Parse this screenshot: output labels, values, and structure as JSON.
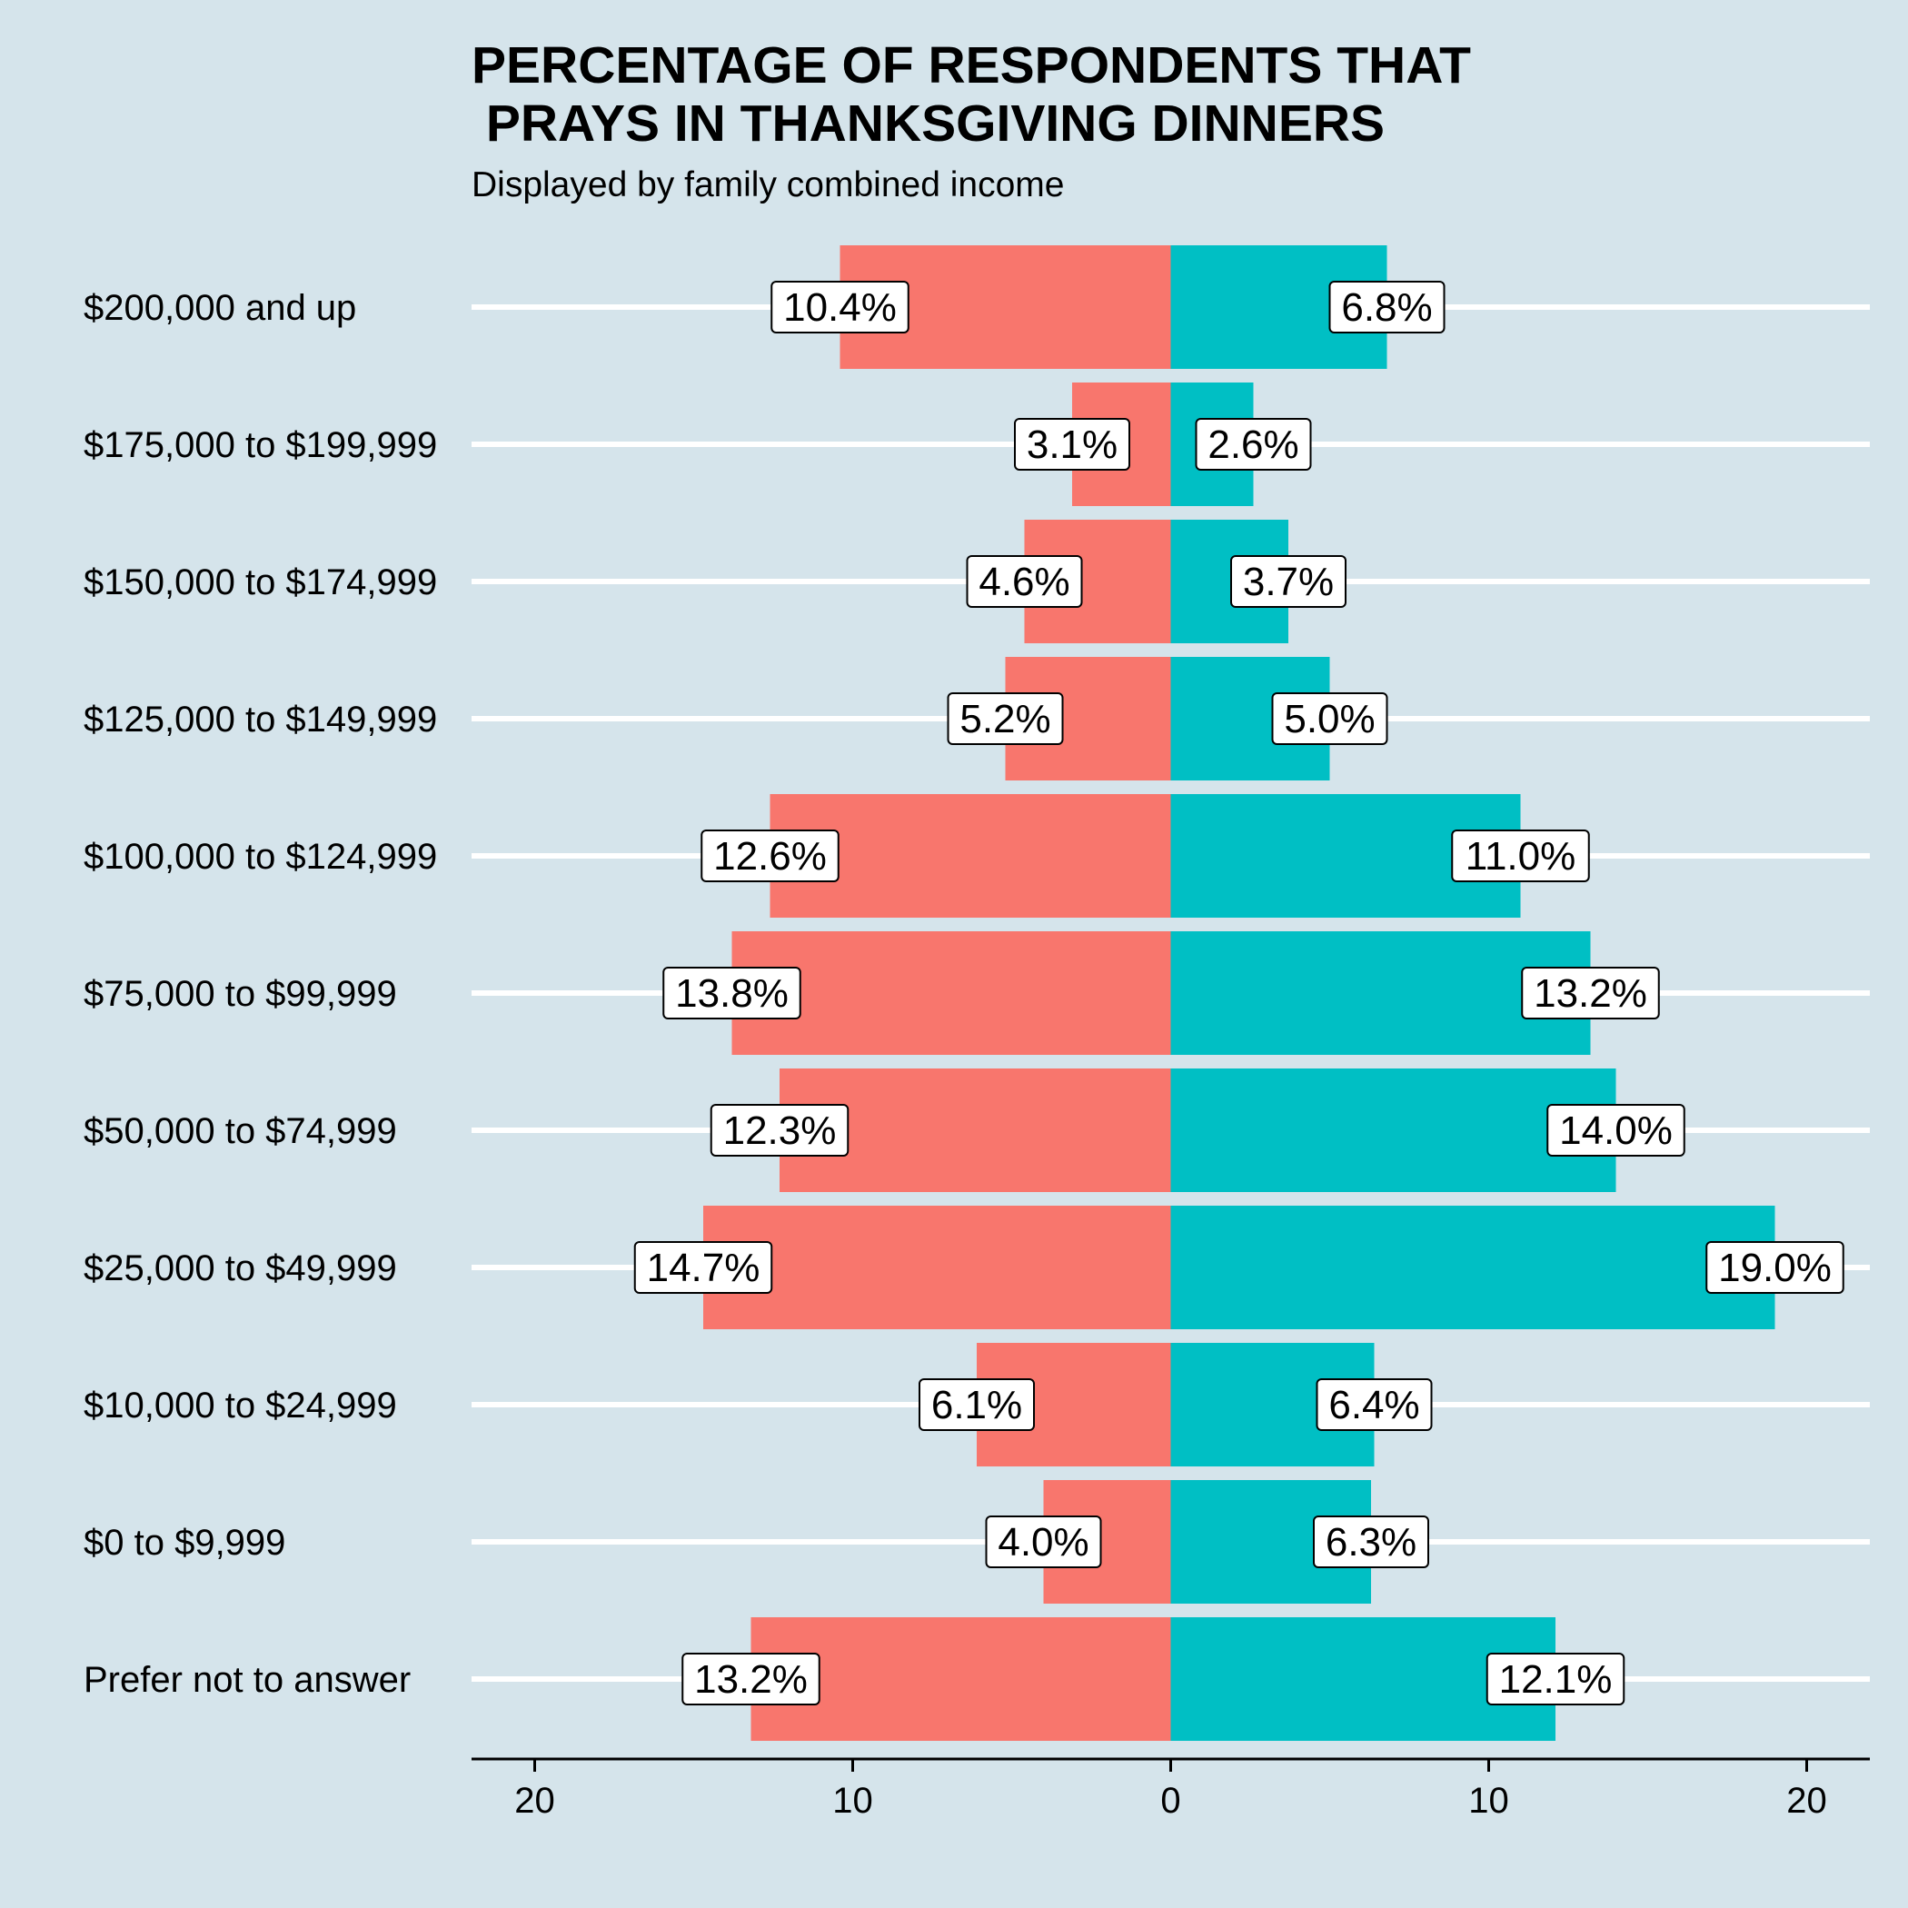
{
  "chart_data": {
    "type": "bar",
    "orientation": "horizontal-diverging",
    "title_line1": "PERCENTAGE OF RESPONDENTS THAT",
    "title_line2": " PRAYS IN THANKSGIVING DINNERS",
    "subtitle": "Displayed by family combined income",
    "categories": [
      "$200,000 and up",
      "$175,000 to $199,999",
      "$150,000 to $174,999",
      "$125,000 to $149,999",
      "$100,000 to $124,999",
      "$75,000 to $99,999",
      "$50,000 to $74,999",
      "$25,000 to $49,999",
      "$10,000 to $24,999",
      "$0 to $9,999",
      "Prefer not to answer"
    ],
    "series": [
      {
        "side": "left",
        "color": "#f8766d",
        "values": [
          10.4,
          3.1,
          4.6,
          5.2,
          12.6,
          13.8,
          12.3,
          14.7,
          6.1,
          4.0,
          13.2
        ],
        "labels": [
          "10.4%",
          "3.1%",
          "4.6%",
          "5.2%",
          "12.6%",
          "13.8%",
          "12.3%",
          "14.7%",
          "6.1%",
          "4.0%",
          "13.2%"
        ]
      },
      {
        "side": "right",
        "color": "#00bfc4",
        "values": [
          6.8,
          2.6,
          3.7,
          5.0,
          11.0,
          13.2,
          14.0,
          19.0,
          6.4,
          6.3,
          12.1
        ],
        "labels": [
          "6.8%",
          "2.6%",
          "3.7%",
          "5.0%",
          "11.0%",
          "13.2%",
          "14.0%",
          "19.0%",
          "6.4%",
          "6.3%",
          "12.1%"
        ]
      }
    ],
    "xlim": [
      -20,
      20
    ],
    "x_ticks": [
      -20,
      -10,
      0,
      10,
      20
    ],
    "x_tick_labels": [
      "20",
      "10",
      "0",
      "10",
      "20"
    ],
    "grid": "horizontal major lines, white",
    "legend": "none",
    "background": "#d5e4eb"
  }
}
